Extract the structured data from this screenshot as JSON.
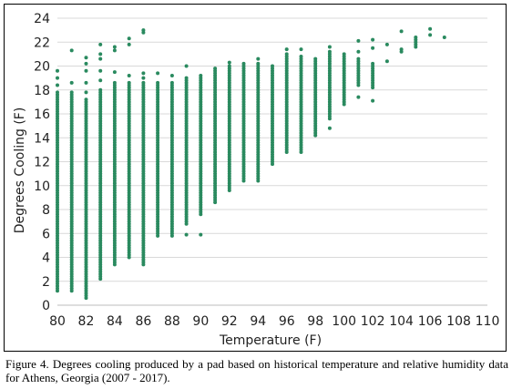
{
  "caption": "Figure 4.   Degrees cooling produced by a pad based on historical temperature and relative humidity data for Athens, Georgia (2007 - 2017).",
  "chart_data": {
    "type": "scatter",
    "xlabel": "Temperature (F)",
    "ylabel": "Degrees Cooling (F)",
    "xlim": [
      80,
      110
    ],
    "ylim": [
      0,
      24
    ],
    "x_ticks": [
      80,
      82,
      84,
      86,
      88,
      90,
      92,
      94,
      96,
      98,
      100,
      102,
      104,
      106,
      108,
      110
    ],
    "y_ticks": [
      0,
      2,
      4,
      6,
      8,
      10,
      12,
      14,
      16,
      18,
      20,
      22,
      24
    ],
    "grid": "horizontal",
    "marker_color": "#2a8a5f",
    "point_spacing": 0.2,
    "series": [
      {
        "columns": [
          {
            "x": 80,
            "y_min": 1.2,
            "y_max": 17.8,
            "extra": [
              18.4,
              19.0,
              19.6
            ]
          },
          {
            "x": 81,
            "y_min": 1.2,
            "y_max": 17.8,
            "extra": [
              18.6,
              21.3
            ]
          },
          {
            "x": 82,
            "y_min": 0.6,
            "y_max": 17.2,
            "extra": [
              17.8,
              18.6,
              19.6,
              20.2,
              20.7
            ]
          },
          {
            "x": 83,
            "y_min": 2.2,
            "y_max": 18.0,
            "extra": [
              18.8,
              19.6,
              20.6,
              21.0,
              21.8
            ]
          },
          {
            "x": 84,
            "y_min": 3.4,
            "y_max": 18.6,
            "extra": [
              19.5,
              21.3,
              21.6
            ]
          },
          {
            "x": 85,
            "y_min": 4.0,
            "y_max": 18.6,
            "extra": [
              19.2,
              21.8,
              22.3
            ]
          },
          {
            "x": 86,
            "y_min": 3.4,
            "y_max": 18.6,
            "extra": [
              19.0,
              19.4,
              22.8,
              23.0
            ]
          },
          {
            "x": 87,
            "y_min": 5.8,
            "y_max": 18.6,
            "extra": [
              19.4
            ]
          },
          {
            "x": 88,
            "y_min": 5.8,
            "y_max": 18.6,
            "extra": [
              19.2
            ]
          },
          {
            "x": 89,
            "y_min": 6.8,
            "y_max": 19.0,
            "extra": [
              5.9,
              20.0
            ]
          },
          {
            "x": 90,
            "y_min": 7.6,
            "y_max": 19.2,
            "extra": [
              5.9
            ]
          },
          {
            "x": 91,
            "y_min": 8.6,
            "y_max": 19.8,
            "extra": []
          },
          {
            "x": 92,
            "y_min": 9.6,
            "y_max": 20.0,
            "extra": [
              20.3
            ]
          },
          {
            "x": 93,
            "y_min": 10.4,
            "y_max": 20.3,
            "extra": []
          },
          {
            "x": 94,
            "y_min": 10.4,
            "y_max": 20.3,
            "extra": [
              20.6
            ]
          },
          {
            "x": 95,
            "y_min": 11.8,
            "y_max": 20.1,
            "extra": []
          },
          {
            "x": 96,
            "y_min": 12.8,
            "y_max": 21.1,
            "extra": [
              21.4
            ]
          },
          {
            "x": 97,
            "y_min": 12.8,
            "y_max": 20.9,
            "extra": [
              21.4
            ]
          },
          {
            "x": 98,
            "y_min": 14.2,
            "y_max": 20.6,
            "extra": []
          },
          {
            "x": 99,
            "y_min": 15.6,
            "y_max": 21.2,
            "extra": [
              14.8,
              21.6
            ]
          },
          {
            "x": 100,
            "y_min": 16.8,
            "y_max": 21.1,
            "extra": []
          },
          {
            "x": 101,
            "y_min": 18.4,
            "y_max": 20.6,
            "extra": [
              17.4,
              21.2,
              22.1
            ]
          },
          {
            "x": 102,
            "y_min": 18.2,
            "y_max": 20.2,
            "extra": [
              17.1,
              21.5,
              22.2
            ]
          },
          {
            "x": 103,
            "y_min": 20.4,
            "y_max": 20.4,
            "extra": [
              21.8
            ]
          },
          {
            "x": 104,
            "y_min": 21.2,
            "y_max": 21.5,
            "extra": [
              22.9
            ]
          },
          {
            "x": 105,
            "y_min": 21.6,
            "y_max": 22.4,
            "extra": []
          },
          {
            "x": 106,
            "y_min": 22.6,
            "y_max": 22.6,
            "extra": [
              23.1
            ]
          },
          {
            "x": 107,
            "y_min": 22.4,
            "y_max": 22.4,
            "extra": []
          }
        ]
      }
    ]
  }
}
